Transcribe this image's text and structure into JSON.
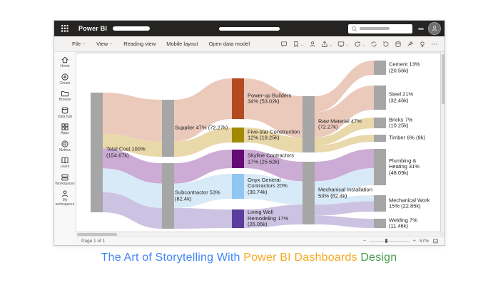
{
  "topbar": {
    "app_name": "Power BI",
    "icons": [
      "waffle-icon",
      "search-icon",
      "avatar"
    ]
  },
  "menubar": {
    "items": [
      {
        "label": "File",
        "dropdown": true
      },
      {
        "label": "View",
        "dropdown": true
      },
      {
        "label": "Reading view",
        "dropdown": false
      },
      {
        "label": "Mobile layout",
        "dropdown": false
      },
      {
        "label": "Open data model",
        "dropdown": false
      }
    ],
    "toolbar_icons": [
      {
        "name": "comment-icon",
        "dropdown": false
      },
      {
        "name": "bookmark-icon",
        "dropdown": true
      },
      {
        "name": "person-icon",
        "dropdown": false
      },
      {
        "name": "share-icon",
        "dropdown": true
      },
      {
        "name": "present-icon",
        "dropdown": true
      },
      {
        "name": "refresh-icon",
        "dropdown": true
      },
      {
        "name": "sync-icon",
        "dropdown": false
      },
      {
        "name": "reset-icon",
        "dropdown": false
      },
      {
        "name": "database-icon",
        "dropdown": false
      },
      {
        "name": "pin-icon",
        "dropdown": false
      },
      {
        "name": "lightbulb-icon",
        "dropdown": false
      },
      {
        "name": "more-icon",
        "dropdown": false
      }
    ]
  },
  "sidebar": {
    "items": [
      {
        "label": "Home",
        "icon": "home-icon"
      },
      {
        "label": "Create",
        "icon": "create-icon"
      },
      {
        "label": "Browse",
        "icon": "browse-icon"
      },
      {
        "label": "Data hub",
        "icon": "datahub-icon"
      },
      {
        "label": "Apps",
        "icon": "apps-icon"
      },
      {
        "label": "Metrics",
        "icon": "metrics-icon"
      },
      {
        "label": "Learn",
        "icon": "learn-icon"
      },
      {
        "label": "Workspaces",
        "icon": "workspaces-icon"
      },
      {
        "label": "My workspaces",
        "icon": "person-icon"
      }
    ]
  },
  "statusbar": {
    "page_label": "Page 1 of 1",
    "zoom_percent": "57%"
  },
  "caption": {
    "segments": [
      {
        "text": "The Art of Storytelling With ",
        "color": "#4285f4"
      },
      {
        "text": "Power BI Dashboards ",
        "color": "#f6a823"
      },
      {
        "text": "Design",
        "color": "#4a9d4e"
      }
    ]
  },
  "chart_data": {
    "type": "sankey",
    "unit": "k",
    "nodes": [
      {
        "id": "total",
        "name": "Total Cost",
        "percent": 100,
        "value_k": 154.67,
        "label": "Total Cost 100%\n(154.67k)",
        "column": 0,
        "color": "#a6a6a6"
      },
      {
        "id": "supplier",
        "name": "Supplier",
        "percent": 47,
        "value_k": 72.27,
        "label": "Supplier 47% (72.27k)",
        "column": 1,
        "color": "#a6a6a6"
      },
      {
        "id": "subcontractor",
        "name": "Subcontractor",
        "percent": 53,
        "value_k": 82.4,
        "label": "Subcontractor 53%\n(82.4k)",
        "column": 1,
        "color": "#a6a6a6"
      },
      {
        "id": "powerup",
        "name": "Power-up Builders",
        "percent": 34,
        "value_k": 53.02,
        "label": "Power-up Builders\n34% (53.02k)",
        "column": 2,
        "color": "#b34a22"
      },
      {
        "id": "fivestar",
        "name": "Five-star Construction",
        "percent": 12,
        "value_k": 19.25,
        "label": "Five-star Construction\n12% (19.25k)",
        "column": 2,
        "color": "#a18a00"
      },
      {
        "id": "skyline",
        "name": "Skyline Contractors",
        "percent": 17,
        "value_k": 25.62,
        "label": "Skyline Contractors\n17% (25.62k)",
        "column": 2,
        "color": "#650b76"
      },
      {
        "id": "onyx",
        "name": "Onyx General Contractors",
        "percent": 20,
        "value_k": 30.74,
        "label": "Onyx General\nContractors 20%\n(30.74k)",
        "column": 2,
        "color": "#8fc6f2"
      },
      {
        "id": "livingwell",
        "name": "Living Well Remodeling",
        "percent": 17,
        "value_k": 26.05,
        "label": "Living Well\nRemodeling 17%\n(26.05k)",
        "column": 2,
        "color": "#5b3d9e"
      },
      {
        "id": "raw",
        "name": "Raw Material",
        "percent": 47,
        "value_k": 72.27,
        "label": "Raw Material 47%\n(72.27k)",
        "column": 3,
        "color": "#a6a6a6"
      },
      {
        "id": "mech",
        "name": "Mechanical Installation",
        "percent": 53,
        "value_k": 82.4,
        "label": "Mechanical Installation\n53% (82.4k)",
        "column": 3,
        "color": "#a6a6a6"
      },
      {
        "id": "cement",
        "name": "Cement",
        "percent": 13,
        "value_k": 20.56,
        "label": "Cement 13%\n(20.56k)",
        "column": 4,
        "color": "#a6a6a6"
      },
      {
        "id": "steel",
        "name": "Steel",
        "percent": 21,
        "value_k": 32.46,
        "label": "Steel 21%\n(32.46k)",
        "column": 4,
        "color": "#a6a6a6"
      },
      {
        "id": "bricks",
        "name": "Bricks",
        "percent": 7,
        "value_k": 10.25,
        "label": "Bricks 7%\n(10.25k)",
        "column": 4,
        "color": "#a6a6a6"
      },
      {
        "id": "timber",
        "name": "Timber",
        "percent": 6,
        "value_k": 9,
        "label": "Timber 6% (9k)",
        "column": 4,
        "color": "#a6a6a6"
      },
      {
        "id": "plumbing",
        "name": "Plumbing & Heating",
        "percent": 31,
        "value_k": 48.09,
        "label": "Plumbing &\nHeating 31%\n(48.09k)",
        "column": 4,
        "color": "#a6a6a6"
      },
      {
        "id": "mechwork",
        "name": "Mechanical Work",
        "percent": 15,
        "value_k": 22.85,
        "label": "Mechanical Work\n15% (22.85k)",
        "column": 4,
        "color": "#a6a6a6"
      },
      {
        "id": "welding",
        "name": "Welding",
        "percent": 7,
        "value_k": 11.46,
        "label": "Welding 7%\n(11.46k)",
        "column": 4,
        "color": "#a6a6a6"
      }
    ],
    "links": [
      {
        "source": "total",
        "target": "supplier",
        "value": 53.02,
        "color": "#eac7b8"
      },
      {
        "source": "total",
        "target": "supplier",
        "value": 19.25,
        "color": "#e8d6a4"
      },
      {
        "source": "total",
        "target": "subcontractor",
        "value": 25.62,
        "color": "#c9a7d3"
      },
      {
        "source": "total",
        "target": "subcontractor",
        "value": 30.74,
        "color": "#d6e9f8"
      },
      {
        "source": "total",
        "target": "subcontractor",
        "value": 26.05,
        "color": "#c9c0e2"
      },
      {
        "source": "supplier",
        "target": "powerup",
        "value": 53.02,
        "color": "#eac7b8"
      },
      {
        "source": "supplier",
        "target": "fivestar",
        "value": 19.25,
        "color": "#e8d6a4"
      },
      {
        "source": "subcontractor",
        "target": "skyline",
        "value": 25.62,
        "color": "#c9a7d3"
      },
      {
        "source": "subcontractor",
        "target": "onyx",
        "value": 30.74,
        "color": "#d6e9f8"
      },
      {
        "source": "subcontractor",
        "target": "livingwell",
        "value": 26.05,
        "color": "#c9c0e2"
      },
      {
        "source": "powerup",
        "target": "raw",
        "value": 53.02,
        "color": "#eac7b8"
      },
      {
        "source": "fivestar",
        "target": "raw",
        "value": 19.25,
        "color": "#e8d6a4"
      },
      {
        "source": "skyline",
        "target": "mech",
        "value": 25.62,
        "color": "#c9a7d3"
      },
      {
        "source": "onyx",
        "target": "mech",
        "value": 30.74,
        "color": "#d6e9f8"
      },
      {
        "source": "livingwell",
        "target": "mech",
        "value": 26.05,
        "color": "#c9c0e2"
      },
      {
        "source": "raw",
        "target": "cement",
        "value": 20.56,
        "color": "#eac7b8"
      },
      {
        "source": "raw",
        "target": "steel",
        "value": 32.46,
        "color": "#eac7b8"
      },
      {
        "source": "raw",
        "target": "bricks",
        "value": 10.25,
        "color": "#e8d6a4"
      },
      {
        "source": "raw",
        "target": "timber",
        "value": 9,
        "color": "#e8d6a4"
      },
      {
        "source": "mech",
        "target": "plumbing",
        "value": 25.62,
        "color": "#c9a7d3"
      },
      {
        "source": "mech",
        "target": "plumbing",
        "value": 22.47,
        "color": "#d6e9f8"
      },
      {
        "source": "mech",
        "target": "mechwork",
        "value": 8.27,
        "color": "#d6e9f8"
      },
      {
        "source": "mech",
        "target": "mechwork",
        "value": 14.59,
        "color": "#c9c0e2"
      },
      {
        "source": "mech",
        "target": "welding",
        "value": 11.46,
        "color": "#c9c0e2"
      }
    ]
  }
}
